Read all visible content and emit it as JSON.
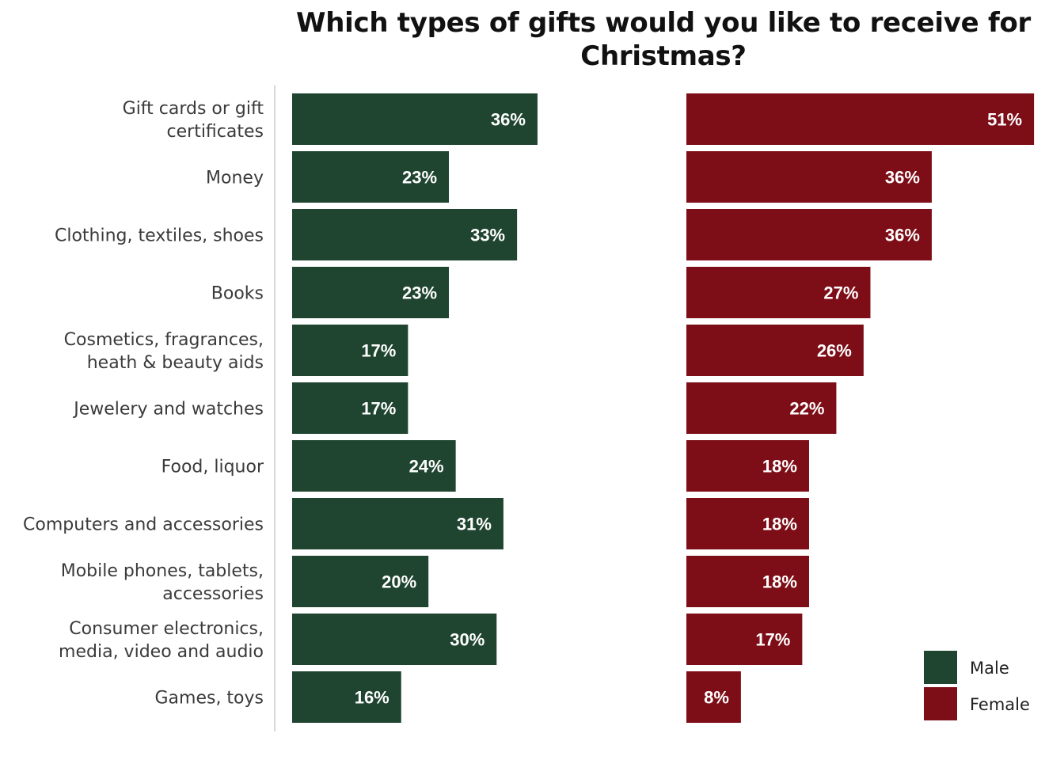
{
  "chart_data": {
    "type": "bar",
    "orientation": "horizontal",
    "title": "Which types of gifts would you like to receive for Christmas?",
    "categories": [
      "Gift cards or gift certificates",
      "Money",
      "Clothing, textiles, shoes",
      "Books",
      "Cosmetics, fragrances, heath & beauty aids",
      "Jewelery and watches",
      "Food, liquor",
      "Computers and accessories",
      "Mobile phones, tablets, accessories",
      "Consumer electronics, media, video and audio",
      "Games, toys"
    ],
    "category_lines": [
      [
        "Gift cards or gift",
        "certificates"
      ],
      [
        "Money"
      ],
      [
        "Clothing, textiles, shoes"
      ],
      [
        "Books"
      ],
      [
        "Cosmetics, fragrances,",
        "heath & beauty aids"
      ],
      [
        "Jewelery and watches"
      ],
      [
        "Food, liquor"
      ],
      [
        "Computers and accessories"
      ],
      [
        "Mobile phones, tablets,",
        "accessories"
      ],
      [
        "Consumer electronics,",
        "media, video and audio"
      ],
      [
        "Games, toys"
      ]
    ],
    "series": [
      {
        "name": "Male",
        "color": "#1f4530",
        "values": [
          36,
          23,
          33,
          23,
          17,
          17,
          24,
          31,
          20,
          30,
          16
        ],
        "labels": [
          "36%",
          "23%",
          "33%",
          "23%",
          "17%",
          "17%",
          "24%",
          "31%",
          "20%",
          "30%",
          "16%"
        ]
      },
      {
        "name": "Female",
        "color": "#7d0d16",
        "values": [
          51,
          36,
          36,
          27,
          26,
          22,
          18,
          18,
          18,
          17,
          8
        ],
        "labels": [
          "51%",
          "36%",
          "36%",
          "27%",
          "26%",
          "22%",
          "18%",
          "18%",
          "18%",
          "17%",
          "8%"
        ]
      }
    ],
    "unit": "%",
    "xlim": [
      0,
      51
    ],
    "grid": false,
    "legend_position": "bottom-right",
    "axis_line_color": "#cccccc"
  }
}
